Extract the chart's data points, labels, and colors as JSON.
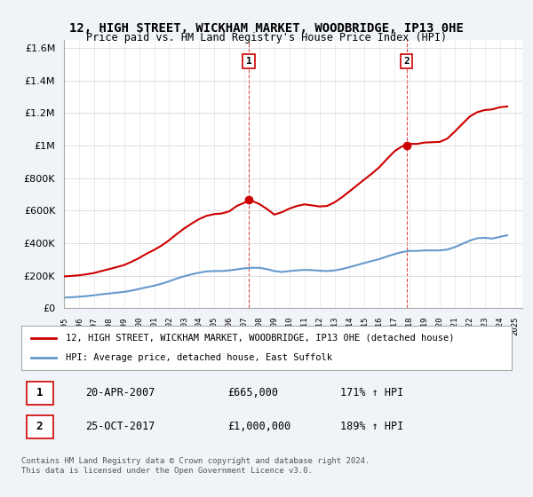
{
  "title": "12, HIGH STREET, WICKHAM MARKET, WOODBRIDGE, IP13 0HE",
  "subtitle": "Price paid vs. HM Land Registry's House Price Index (HPI)",
  "xlabel": "",
  "ylabel": "",
  "ylim": [
    0,
    1650000
  ],
  "xlim_start": 1995.0,
  "xlim_end": 2025.5,
  "background_color": "#f0f4f8",
  "plot_bg_color": "#ffffff",
  "red_color": "#cc0000",
  "blue_color": "#6699cc",
  "point1_x": 2007.3,
  "point1_y": 665000,
  "point1_label": "1",
  "point2_x": 2017.8,
  "point2_y": 1000000,
  "point2_label": "2",
  "legend_line1": "12, HIGH STREET, WICKHAM MARKET, WOODBRIDGE, IP13 0HE (detached house)",
  "legend_line2": "HPI: Average price, detached house, East Suffolk",
  "table_row1_num": "1",
  "table_row1_date": "20-APR-2007",
  "table_row1_price": "£665,000",
  "table_row1_hpi": "171% ↑ HPI",
  "table_row2_num": "2",
  "table_row2_date": "25-OCT-2017",
  "table_row2_price": "£1,000,000",
  "table_row2_hpi": "189% ↑ HPI",
  "footer": "Contains HM Land Registry data © Crown copyright and database right 2024.\nThis data is licensed under the Open Government Licence v3.0.",
  "hpi_x": [
    1995.0,
    1995.5,
    1996.0,
    1996.5,
    1997.0,
    1997.5,
    1998.0,
    1998.5,
    1999.0,
    1999.5,
    2000.0,
    2000.5,
    2001.0,
    2001.5,
    2002.0,
    2002.5,
    2003.0,
    2003.5,
    2004.0,
    2004.5,
    2005.0,
    2005.5,
    2006.0,
    2006.5,
    2007.0,
    2007.5,
    2008.0,
    2008.5,
    2009.0,
    2009.5,
    2010.0,
    2010.5,
    2011.0,
    2011.5,
    2012.0,
    2012.5,
    2013.0,
    2013.5,
    2014.0,
    2014.5,
    2015.0,
    2015.5,
    2016.0,
    2016.5,
    2017.0,
    2017.5,
    2018.0,
    2018.5,
    2019.0,
    2019.5,
    2020.0,
    2020.5,
    2021.0,
    2021.5,
    2022.0,
    2022.5,
    2023.0,
    2023.5,
    2024.0,
    2024.5
  ],
  "hpi_y": [
    65000,
    67000,
    70000,
    74000,
    79000,
    85000,
    90000,
    95000,
    100000,
    108000,
    118000,
    128000,
    138000,
    150000,
    165000,
    182000,
    196000,
    208000,
    218000,
    226000,
    228000,
    228000,
    232000,
    238000,
    245000,
    248000,
    248000,
    240000,
    228000,
    222000,
    228000,
    232000,
    235000,
    234000,
    230000,
    228000,
    232000,
    240000,
    252000,
    265000,
    278000,
    290000,
    302000,
    318000,
    332000,
    345000,
    352000,
    352000,
    355000,
    355000,
    355000,
    360000,
    375000,
    395000,
    415000,
    430000,
    432000,
    428000,
    438000,
    448000
  ],
  "red_x": [
    1995.0,
    1995.5,
    1996.0,
    1996.5,
    1997.0,
    1997.5,
    1998.0,
    1998.5,
    1999.0,
    1999.5,
    2000.0,
    2000.5,
    2001.0,
    2001.5,
    2002.0,
    2002.5,
    2003.0,
    2003.5,
    2004.0,
    2004.5,
    2005.0,
    2005.5,
    2006.0,
    2006.5,
    2007.0,
    2007.3,
    2007.5,
    2008.0,
    2008.5,
    2009.0,
    2009.5,
    2010.0,
    2010.5,
    2011.0,
    2011.5,
    2012.0,
    2012.5,
    2013.0,
    2013.5,
    2014.0,
    2014.5,
    2015.0,
    2015.5,
    2016.0,
    2016.5,
    2017.0,
    2017.5,
    2017.8,
    2018.0,
    2018.5,
    2019.0,
    2019.5,
    2020.0,
    2020.5,
    2021.0,
    2021.5,
    2022.0,
    2022.5,
    2023.0,
    2023.5,
    2024.0,
    2024.5
  ],
  "red_y": [
    195000,
    198000,
    202000,
    208000,
    216000,
    228000,
    240000,
    252000,
    265000,
    285000,
    308000,
    335000,
    358000,
    385000,
    418000,
    455000,
    490000,
    520000,
    548000,
    568000,
    578000,
    582000,
    595000,
    628000,
    648000,
    665000,
    660000,
    640000,
    610000,
    575000,
    590000,
    612000,
    628000,
    638000,
    632000,
    625000,
    628000,
    650000,
    682000,
    718000,
    755000,
    792000,
    828000,
    868000,
    918000,
    965000,
    995000,
    1000000,
    1010000,
    1010000,
    1018000,
    1020000,
    1022000,
    1042000,
    1085000,
    1132000,
    1178000,
    1205000,
    1218000,
    1222000,
    1235000,
    1240000
  ]
}
